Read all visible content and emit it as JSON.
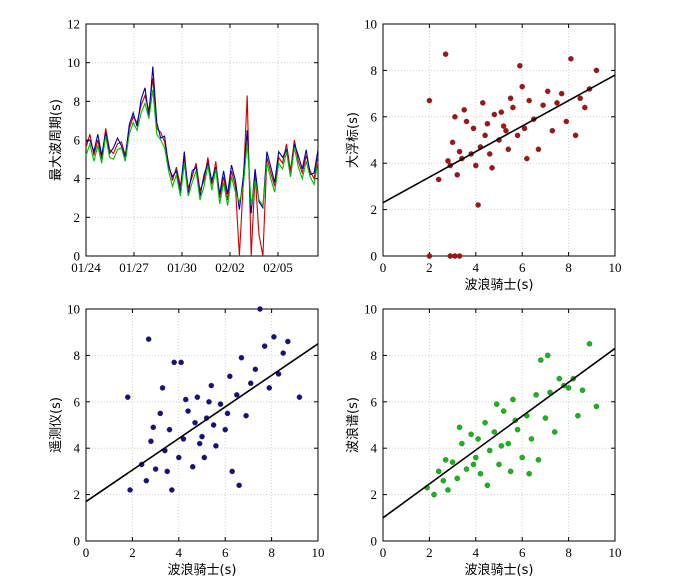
{
  "chart_data": [
    {
      "id": "ts",
      "type": "line",
      "ylabel": "最大波周期(s)",
      "ylim": [
        0,
        12
      ],
      "yticks": [
        "0",
        "2",
        "4",
        "6",
        "8",
        "10",
        "12"
      ],
      "xticks": [
        "01/24",
        "01/27",
        "01/30",
        "02/02",
        "02/05"
      ],
      "xtick_pos": [
        0,
        3,
        6,
        9,
        12
      ],
      "xlim": [
        0,
        14.5
      ],
      "grid": true,
      "series": [
        {
          "name": "大浮标",
          "color": "#cc0000",
          "values": [
            5.6,
            6.3,
            5.2,
            6.0,
            5.0,
            6.6,
            5.5,
            5.3,
            5.8,
            5.9,
            5.2,
            6.6,
            7.2,
            6.9,
            7.8,
            8.3,
            7.5,
            9.2,
            6.6,
            6.4,
            5.9,
            4.8,
            3.9,
            4.6,
            3.6,
            5.1,
            3.5,
            4.1,
            4.8,
            3.4,
            3.9,
            5.1,
            3.7,
            4.9,
            3.0,
            4.1,
            2.9,
            4.4,
            3.6,
            0.0,
            3.8,
            8.3,
            0.0,
            4.2,
            1.1,
            0.0,
            5.1,
            4.3,
            3.6,
            5.1,
            4.8,
            5.8,
            4.4,
            6.0,
            4.9,
            4.3,
            5.2,
            4.4,
            4.0,
            5.2
          ]
        },
        {
          "name": "遥测仪",
          "color": "#0000aa",
          "values": [
            5.9,
            6.0,
            5.4,
            6.3,
            5.2,
            6.4,
            5.3,
            5.6,
            6.1,
            5.7,
            5.1,
            6.8,
            7.4,
            6.7,
            8.1,
            8.7,
            7.2,
            9.8,
            6.9,
            6.1,
            6.2,
            4.6,
            4.1,
            4.4,
            3.3,
            5.4,
            3.2,
            4.4,
            4.6,
            3.1,
            4.2,
            4.8,
            3.9,
            4.6,
            3.2,
            4.4,
            3.2,
            4.7,
            3.9,
            2.4,
            4.1,
            6.5,
            2.2,
            4.5,
            2.8,
            2.5,
            5.4,
            4.6,
            3.8,
            5.4,
            5.1,
            5.5,
            4.1,
            5.8,
            5.2,
            4.5,
            5.5,
            4.2,
            4.3,
            5.5
          ]
        },
        {
          "name": "波浪谱",
          "color": "#00bb00",
          "values": [
            5.2,
            5.8,
            4.9,
            5.7,
            4.8,
            6.2,
            5.1,
            5.0,
            5.5,
            5.6,
            4.9,
            6.3,
            6.9,
            6.5,
            7.4,
            7.9,
            7.1,
            8.6,
            6.3,
            6.0,
            5.6,
            4.4,
            3.6,
            4.2,
            3.1,
            4.8,
            3.1,
            3.8,
            4.4,
            2.9,
            3.6,
            4.7,
            3.4,
            4.5,
            2.7,
            3.8,
            2.6,
            4.1,
            3.3,
            2.8,
            3.6,
            5.9,
            2.6,
            3.9,
            2.9,
            2.6,
            4.8,
            4.0,
            3.3,
            4.8,
            4.5,
            5.4,
            4.1,
            5.6,
            4.6,
            4.0,
            4.9,
            4.1,
            3.7,
            4.9
          ]
        }
      ]
    },
    {
      "id": "red",
      "type": "scatter",
      "xlabel": "波浪骑士(s)",
      "ylabel": "大浮标(s)",
      "xlim": [
        0,
        10
      ],
      "ylim": [
        0,
        10
      ],
      "xticks": [
        "0",
        "2",
        "4",
        "6",
        "8",
        "10"
      ],
      "yticks": [
        "0",
        "2",
        "4",
        "6",
        "8",
        "10"
      ],
      "color": "#aa1111",
      "fit": {
        "intercept": 2.3,
        "slope": 0.55
      },
      "points": [
        [
          2.0,
          6.7
        ],
        [
          2.7,
          8.7
        ],
        [
          2.0,
          0
        ],
        [
          2.9,
          0
        ],
        [
          3.1,
          0
        ],
        [
          3.3,
          0
        ],
        [
          2.4,
          3.3
        ],
        [
          2.8,
          4.1
        ],
        [
          3.0,
          4.9
        ],
        [
          3.2,
          3.5
        ],
        [
          3.4,
          4.2
        ],
        [
          3.6,
          5.8
        ],
        [
          3.8,
          4.4
        ],
        [
          4.0,
          3.9
        ],
        [
          4.1,
          2.2
        ],
        [
          4.2,
          4.7
        ],
        [
          4.4,
          5.2
        ],
        [
          4.6,
          4.4
        ],
        [
          4.8,
          6.1
        ],
        [
          5.0,
          5.0
        ],
        [
          5.2,
          5.6
        ],
        [
          5.4,
          4.6
        ],
        [
          5.6,
          6.4
        ],
        [
          5.8,
          5.2
        ],
        [
          6.0,
          7.3
        ],
        [
          6.1,
          5.5
        ],
        [
          6.3,
          6.7
        ],
        [
          6.5,
          5.9
        ],
        [
          6.7,
          4.6
        ],
        [
          6.9,
          6.5
        ],
        [
          7.1,
          7.1
        ],
        [
          7.3,
          5.4
        ],
        [
          7.5,
          6.6
        ],
        [
          7.7,
          7.0
        ],
        [
          7.9,
          5.8
        ],
        [
          8.1,
          8.5
        ],
        [
          8.3,
          5.2
        ],
        [
          8.5,
          6.8
        ],
        [
          8.7,
          6.4
        ],
        [
          8.9,
          7.2
        ],
        [
          9.2,
          8.0
        ],
        [
          3.1,
          6.0
        ],
        [
          3.5,
          6.3
        ],
        [
          4.3,
          6.6
        ],
        [
          5.1,
          6.2
        ],
        [
          5.5,
          6.8
        ],
        [
          5.9,
          8.2
        ],
        [
          4.7,
          3.8
        ],
        [
          3.9,
          5.5
        ],
        [
          3.3,
          4.5
        ],
        [
          2.9,
          3.9
        ],
        [
          4.5,
          5.7
        ],
        [
          5.3,
          5.4
        ],
        [
          6.2,
          4.2
        ]
      ]
    },
    {
      "id": "blue",
      "type": "scatter",
      "xlabel": "波浪骑士(s)",
      "ylabel": "遥测仪(s)",
      "xlim": [
        0,
        10
      ],
      "ylim": [
        0,
        10
      ],
      "xticks": [
        "0",
        "2",
        "4",
        "6",
        "8",
        "10"
      ],
      "yticks": [
        "0",
        "2",
        "4",
        "6",
        "8",
        "10"
      ],
      "color": "#111188",
      "fit": {
        "intercept": 1.7,
        "slope": 0.68
      },
      "points": [
        [
          1.9,
          2.2
        ],
        [
          1.8,
          6.2
        ],
        [
          2.7,
          8.7
        ],
        [
          2.4,
          3.3
        ],
        [
          2.6,
          2.6
        ],
        [
          2.8,
          4.3
        ],
        [
          3.0,
          3.1
        ],
        [
          3.2,
          5.5
        ],
        [
          3.4,
          3.9
        ],
        [
          3.6,
          4.8
        ],
        [
          3.7,
          2.2
        ],
        [
          3.8,
          7.7
        ],
        [
          4.0,
          3.6
        ],
        [
          4.2,
          4.4
        ],
        [
          4.4,
          5.6
        ],
        [
          4.6,
          3.2
        ],
        [
          4.8,
          6.2
        ],
        [
          5.0,
          4.5
        ],
        [
          5.2,
          5.3
        ],
        [
          5.4,
          6.7
        ],
        [
          5.6,
          4.1
        ],
        [
          5.8,
          5.9
        ],
        [
          6.0,
          4.8
        ],
        [
          6.2,
          7.1
        ],
        [
          6.3,
          3.0
        ],
        [
          6.5,
          6.3
        ],
        [
          6.7,
          7.9
        ],
        [
          6.9,
          5.4
        ],
        [
          7.1,
          6.8
        ],
        [
          7.3,
          7.4
        ],
        [
          7.5,
          10.0
        ],
        [
          7.7,
          8.4
        ],
        [
          7.9,
          6.6
        ],
        [
          8.1,
          8.8
        ],
        [
          8.3,
          7.2
        ],
        [
          8.5,
          8.1
        ],
        [
          8.7,
          8.6
        ],
        [
          9.2,
          6.2
        ],
        [
          3.3,
          6.6
        ],
        [
          4.1,
          7.7
        ],
        [
          4.7,
          5.1
        ],
        [
          5.1,
          3.6
        ],
        [
          5.5,
          5.0
        ],
        [
          6.1,
          5.5
        ],
        [
          3.5,
          3.0
        ],
        [
          2.9,
          4.9
        ],
        [
          4.3,
          6.1
        ],
        [
          5.3,
          6.0
        ],
        [
          6.6,
          2.4
        ],
        [
          4.9,
          4.2
        ]
      ]
    },
    {
      "id": "green",
      "type": "scatter",
      "xlabel": "波浪骑士(s)",
      "ylabel": "波浪谱(s)",
      "xlim": [
        0,
        10
      ],
      "ylim": [
        0,
        10
      ],
      "xticks": [
        "0",
        "2",
        "4",
        "6",
        "8",
        "10"
      ],
      "yticks": [
        "0",
        "2",
        "4",
        "6",
        "8",
        "10"
      ],
      "color": "#11bb11",
      "fit": {
        "intercept": 1.0,
        "slope": 0.73
      },
      "points": [
        [
          1.9,
          2.3
        ],
        [
          2.2,
          2.0
        ],
        [
          2.4,
          3.0
        ],
        [
          2.6,
          2.6
        ],
        [
          2.8,
          2.2
        ],
        [
          3.0,
          3.4
        ],
        [
          3.2,
          2.7
        ],
        [
          3.4,
          4.2
        ],
        [
          3.6,
          3.1
        ],
        [
          3.8,
          4.6
        ],
        [
          4.0,
          3.6
        ],
        [
          4.2,
          2.9
        ],
        [
          4.4,
          5.1
        ],
        [
          4.6,
          3.9
        ],
        [
          4.8,
          4.7
        ],
        [
          5.0,
          3.3
        ],
        [
          5.2,
          5.6
        ],
        [
          5.4,
          4.2
        ],
        [
          5.6,
          6.1
        ],
        [
          5.8,
          4.8
        ],
        [
          6.0,
          3.6
        ],
        [
          6.2,
          5.4
        ],
        [
          6.4,
          4.4
        ],
        [
          6.6,
          6.3
        ],
        [
          6.8,
          7.8
        ],
        [
          7.0,
          5.3
        ],
        [
          7.2,
          6.4
        ],
        [
          7.4,
          4.7
        ],
        [
          7.6,
          7.0
        ],
        [
          7.8,
          6.7
        ],
        [
          8.0,
          6.6
        ],
        [
          8.2,
          7.0
        ],
        [
          8.4,
          5.4
        ],
        [
          8.6,
          6.5
        ],
        [
          8.9,
          8.5
        ],
        [
          9.2,
          5.8
        ],
        [
          3.3,
          4.9
        ],
        [
          3.9,
          3.3
        ],
        [
          4.5,
          2.4
        ],
        [
          5.1,
          4.1
        ],
        [
          5.7,
          5.2
        ],
        [
          6.3,
          2.9
        ],
        [
          7.1,
          8.0
        ],
        [
          2.7,
          3.5
        ],
        [
          4.1,
          4.4
        ],
        [
          4.9,
          5.9
        ],
        [
          5.5,
          3.0
        ],
        [
          6.7,
          3.5
        ]
      ]
    }
  ]
}
